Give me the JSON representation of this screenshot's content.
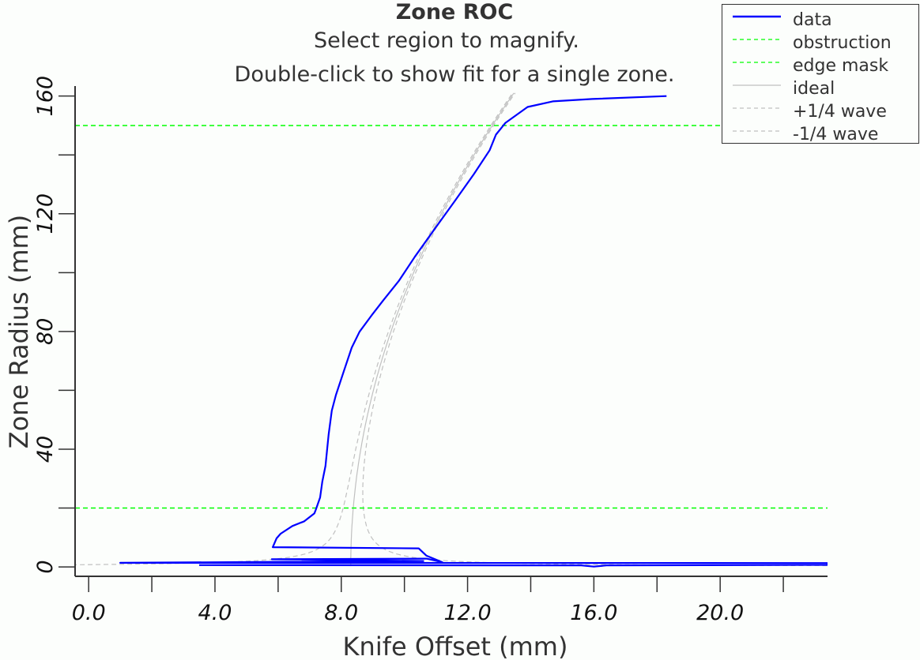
{
  "chart_data": {
    "type": "line",
    "title": "Zone ROC",
    "subtitle": [
      "Select region to magnify.",
      "Double-click to show fit for a single zone."
    ],
    "xlabel": "Knife Offset (mm)",
    "ylabel": "Zone Radius (mm)",
    "xlim": [
      -0.43,
      23.4
    ],
    "ylim": [
      -3.2,
      163.4
    ],
    "xticks": [
      0,
      4,
      8,
      12,
      16,
      20
    ],
    "xtick_labels": [
      "0.0",
      "4.0",
      "8.0",
      "12.0",
      "16.0",
      "20.0"
    ],
    "xminor_ticks": [
      2,
      6,
      10,
      14,
      18,
      22
    ],
    "yticks": [
      0,
      40,
      80,
      120,
      160
    ],
    "ytick_labels": [
      "0",
      "40",
      "80",
      "120",
      "160"
    ],
    "yminor_ticks": [
      20,
      60,
      100,
      140
    ],
    "grid": false,
    "legend_position": "top-right",
    "series": [
      {
        "name": "data",
        "color": "#0000ff",
        "style": "solid",
        "points": [
          [
            3.5,
            0.6
          ],
          [
            15.6,
            0.5
          ],
          [
            16.0,
            0.1
          ],
          [
            16.4,
            0.5
          ],
          [
            23.4,
            0.7
          ],
          [
            23.4,
            1.3
          ],
          [
            1.0,
            1.4
          ],
          [
            10.6,
            2.0
          ],
          [
            5.8,
            2.6
          ],
          [
            10.7,
            2.8
          ],
          [
            11.2,
            1.6
          ],
          [
            10.7,
            3.8
          ],
          [
            10.45,
            6.3
          ],
          [
            5.83,
            6.7
          ],
          [
            5.95,
            9.7
          ],
          [
            6.08,
            11.3
          ],
          [
            6.45,
            13.9
          ],
          [
            6.83,
            15.5
          ],
          [
            7.15,
            18.2
          ],
          [
            7.2,
            19.6
          ],
          [
            7.33,
            23.6
          ],
          [
            7.4,
            29.0
          ],
          [
            7.5,
            34.3
          ],
          [
            7.55,
            39.7
          ],
          [
            7.6,
            45.0
          ],
          [
            7.7,
            53.1
          ],
          [
            7.83,
            58.4
          ],
          [
            8.08,
            66.5
          ],
          [
            8.33,
            74.5
          ],
          [
            8.58,
            79.9
          ],
          [
            8.95,
            85.3
          ],
          [
            9.33,
            90.6
          ],
          [
            9.83,
            97.3
          ],
          [
            10.33,
            105.4
          ],
          [
            10.95,
            114.7
          ],
          [
            11.58,
            124.1
          ],
          [
            12.2,
            133.5
          ],
          [
            12.7,
            141.6
          ],
          [
            12.9,
            146.9
          ],
          [
            13.2,
            150.9
          ],
          [
            13.9,
            156.3
          ],
          [
            14.7,
            158.2
          ],
          [
            15.95,
            159.0
          ],
          [
            18.3,
            160.0
          ]
        ]
      },
      {
        "name": "obstruction",
        "color": "#00ff00",
        "style": "dashed",
        "y": 20
      },
      {
        "name": "edge mask",
        "color": "#00ff00",
        "style": "dashed",
        "y": 150
      },
      {
        "name": "ideal",
        "color": "#c0c0c0",
        "style": "solid",
        "offset": 8.3,
        "roc": 5020
      },
      {
        "name": "+1/4 wave",
        "color": "#c0c0c0",
        "style": "dashed",
        "offset": 8.3,
        "roc": 5020,
        "delta": 6.4
      },
      {
        "name": "-1/4 wave",
        "color": "#c0c0c0",
        "style": "dashed",
        "offset": 8.3,
        "roc": 5020,
        "delta": -6.4
      }
    ]
  }
}
